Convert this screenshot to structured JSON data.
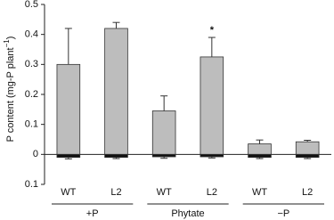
{
  "chart_data": {
    "type": "bar",
    "ylabel_parts": [
      "P content (mg-P plant",
      "−1",
      ")"
    ],
    "categories": [
      "WT",
      "L2",
      "WT",
      "L2",
      "WT",
      "L2"
    ],
    "groups": [
      "+P",
      "Phytate",
      "−P"
    ],
    "series": [
      {
        "color": "#bdbdbd",
        "values": [
          0.3,
          0.42,
          0.145,
          0.325,
          0.035,
          0.042
        ],
        "errors": [
          0.12,
          0.02,
          0.05,
          0.065,
          0.013,
          0.005
        ]
      },
      {
        "color": "#111111",
        "values": [
          -0.01,
          -0.01,
          -0.008,
          -0.008,
          -0.01,
          -0.01
        ],
        "errors": [
          0.005,
          0.004,
          0.005,
          0.004,
          0.004,
          0.004
        ]
      }
    ],
    "annotations": [
      {
        "text": "*",
        "category": 3
      }
    ],
    "ylim": [
      -0.1,
      0.5
    ],
    "yticks": [
      {
        "value": -0.1,
        "label": "0.1"
      },
      0,
      0.1,
      0.2,
      0.3,
      0.4,
      0.5
    ]
  }
}
